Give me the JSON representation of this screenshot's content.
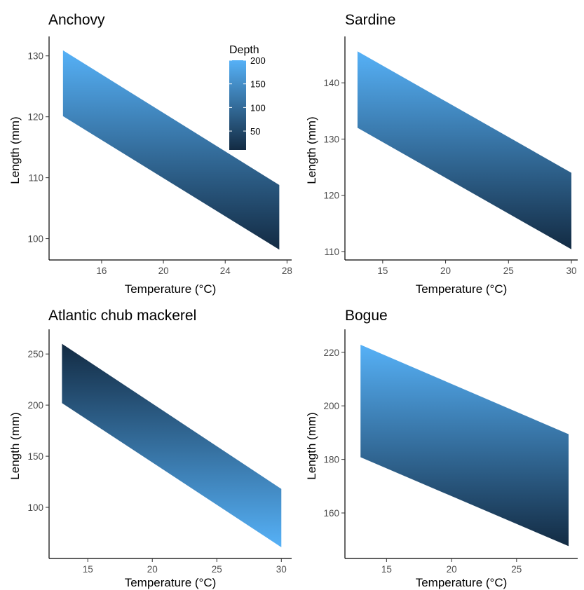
{
  "legend": {
    "title": "Depth",
    "breaks": [
      200,
      150,
      100,
      50
    ],
    "range": [
      10,
      200
    ],
    "colors": {
      "low": "#132b43",
      "high": "#56b1f7"
    },
    "placement": "top-right of first panel"
  },
  "chart_data": [
    {
      "type": "area",
      "title": "Anchovy",
      "xlabel": "Temperature (°C)",
      "ylabel": "Length (mm)",
      "xlim": [
        12.6,
        28.3
      ],
      "ylim": [
        96.5,
        132.5
      ],
      "xticks": [
        16,
        20,
        24,
        28
      ],
      "yticks": [
        100,
        110,
        120,
        130
      ],
      "grid": false,
      "fill_direction": "high_on_top",
      "band": {
        "x": [
          13.5,
          27.5
        ],
        "upper": [
          130.9,
          108.8
        ],
        "lower": [
          120.1,
          98.2
        ]
      }
    },
    {
      "type": "area",
      "title": "Sardine",
      "xlabel": "Temperature (°C)",
      "ylabel": "Length (mm)",
      "xlim": [
        12.0,
        30.5
      ],
      "ylim": [
        108.5,
        147.5
      ],
      "xticks": [
        15,
        20,
        25,
        30
      ],
      "yticks": [
        110,
        120,
        130,
        140
      ],
      "grid": false,
      "fill_direction": "high_on_top",
      "band": {
        "x": [
          13.0,
          30.0
        ],
        "upper": [
          145.6,
          124.0
        ],
        "lower": [
          132.0,
          110.4
        ]
      }
    },
    {
      "type": "area",
      "title": "Atlantic chub mackerel",
      "xlabel": "Temperature (°C)",
      "ylabel": "Length (mm)",
      "xlim": [
        12.0,
        30.8
      ],
      "ylim": [
        50,
        270
      ],
      "xticks": [
        15,
        20,
        25,
        30
      ],
      "yticks": [
        100,
        150,
        200,
        250
      ],
      "grid": false,
      "fill_direction": "high_on_bottom",
      "band": {
        "x": [
          13.0,
          30.0
        ],
        "upper": [
          260.0,
          118.0
        ],
        "lower": [
          202.0,
          61.0
        ]
      }
    },
    {
      "type": "area",
      "title": "Bogue",
      "xlabel": "Temperature (°C)",
      "ylabel": "Length (mm)",
      "xlim": [
        11.8,
        29.7
      ],
      "ylim": [
        143,
        227
      ],
      "xticks": [
        15,
        20,
        25
      ],
      "yticks": [
        160,
        180,
        200,
        220
      ],
      "grid": false,
      "fill_direction": "high_on_top",
      "band": {
        "x": [
          13.0,
          29.0
        ],
        "upper": [
          222.8,
          189.4
        ],
        "lower": [
          180.8,
          147.6
        ]
      }
    }
  ]
}
